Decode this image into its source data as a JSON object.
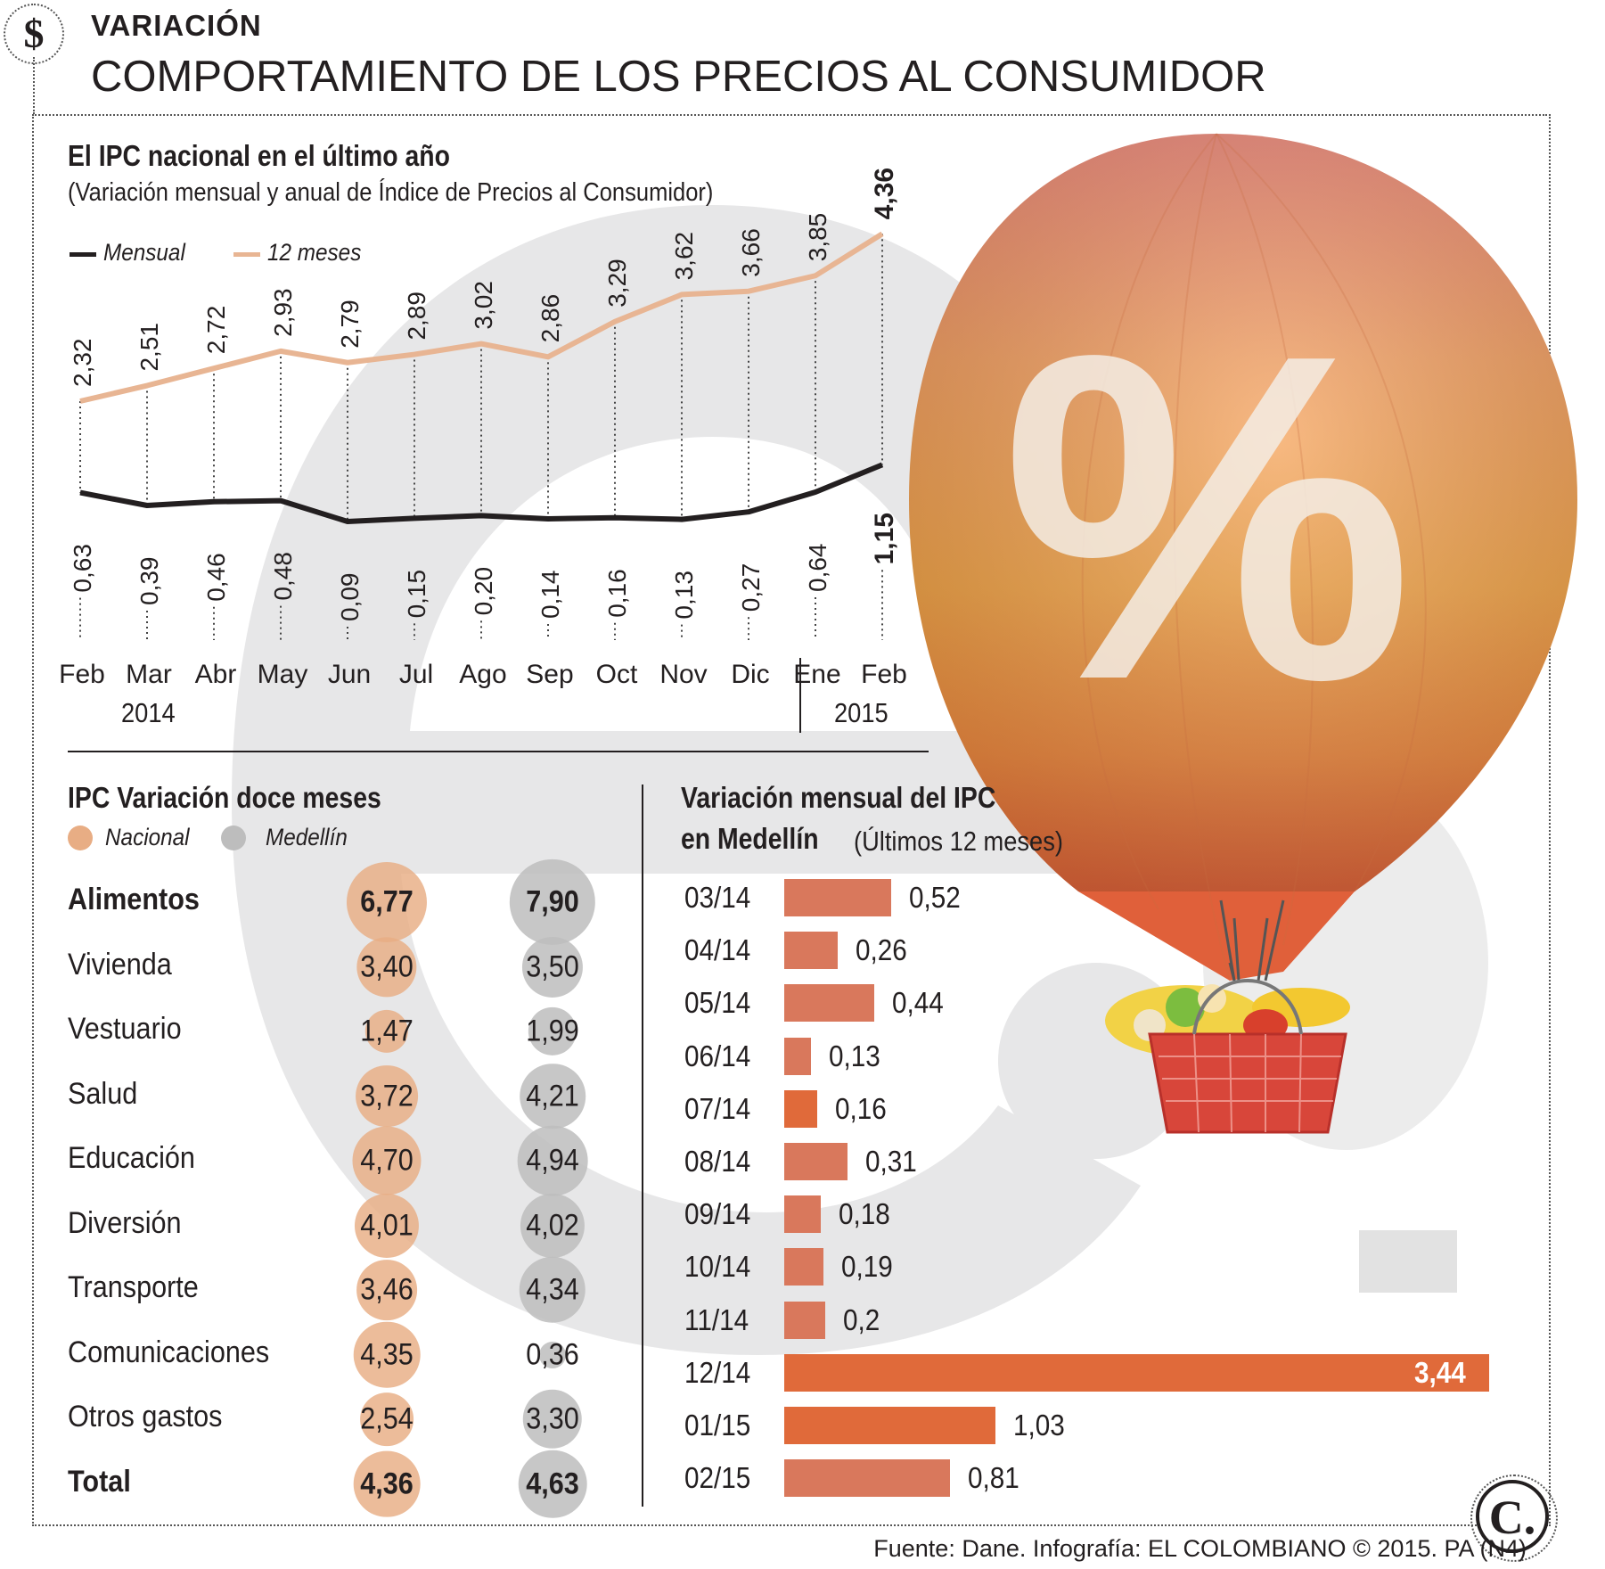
{
  "header": {
    "kicker": "VARIACIÓN",
    "title": "COMPORTAMIENTO DE LOS PRECIOS AL CONSUMIDOR",
    "dollar_icon": "$"
  },
  "line_chart": {
    "title": "El IPC nacional en el último año",
    "subtitle": "(Variación mensual y anual de Índice de Precios al Consumidor)",
    "legend": {
      "mensual": "Mensual",
      "anual": "12 meses"
    },
    "year_2014": "2014",
    "year_2015": "2015"
  },
  "bubbles": {
    "title": "IPC Variación doce meses",
    "legend": {
      "nacional": "Nacional",
      "medellin": "Medellín"
    }
  },
  "bars": {
    "title_line1": "Variación mensual del IPC",
    "title_line2": "en Medellín",
    "title_note": "(Últimos 12 meses)"
  },
  "footer": {
    "source": "Fuente: Dane. Infografía: EL COLOMBIANO © 2015. PA (N4)",
    "logo": "C."
  },
  "balloon": {
    "symbol": "%"
  },
  "colors": {
    "accent_light": "#e8ad84",
    "medellin_gray": "#bdbdbd",
    "bar": "#d9785c",
    "bar_highlight": "#e06a3a",
    "line_monthly": "#231f20",
    "line_annual": "#e8b593"
  },
  "chart_data": [
    {
      "type": "line",
      "title": "El IPC nacional en el último año",
      "categories": [
        "Feb",
        "Mar",
        "Abr",
        "May",
        "Jun",
        "Jul",
        "Ago",
        "Sep",
        "Oct",
        "Nov",
        "Dic",
        "Ene",
        "Feb"
      ],
      "series": [
        {
          "name": "12 meses",
          "labels": [
            "2,32",
            "2,51",
            "2,72",
            "2,93",
            "2,79",
            "2,89",
            "3,02",
            "2,86",
            "3,29",
            "3,62",
            "3,66",
            "3,85",
            "4,36"
          ],
          "values": [
            2.32,
            2.51,
            2.72,
            2.93,
            2.79,
            2.89,
            3.02,
            2.86,
            3.29,
            3.62,
            3.66,
            3.85,
            4.36
          ]
        },
        {
          "name": "Mensual",
          "labels": [
            "0,63",
            "0,39",
            "0,46",
            "0,48",
            "0,09",
            "0,15",
            "0,20",
            "0,14",
            "0,16",
            "0,13",
            "0,27",
            "0,64",
            "1,15"
          ],
          "values": [
            0.63,
            0.39,
            0.46,
            0.48,
            0.09,
            0.15,
            0.2,
            0.14,
            0.16,
            0.13,
            0.27,
            0.64,
            1.15
          ]
        }
      ]
    },
    {
      "type": "bubble",
      "title": "IPC Variación doce meses",
      "rows": [
        {
          "label": "Alimentos",
          "nacional": "6,77",
          "medellin": "7,90",
          "n": 6.77,
          "m": 7.9,
          "bold": true
        },
        {
          "label": "Vivienda",
          "nacional": "3,40",
          "medellin": "3,50",
          "n": 3.4,
          "m": 3.5
        },
        {
          "label": "Vestuario",
          "nacional": "1,47",
          "medellin": "1,99",
          "n": 1.47,
          "m": 1.99
        },
        {
          "label": "Salud",
          "nacional": "3,72",
          "medellin": "4,21",
          "n": 3.72,
          "m": 4.21
        },
        {
          "label": "Educación",
          "nacional": "4,70",
          "medellin": "4,94",
          "n": 4.7,
          "m": 4.94
        },
        {
          "label": "Diversión",
          "nacional": "4,01",
          "medellin": "4,02",
          "n": 4.01,
          "m": 4.02
        },
        {
          "label": "Transporte",
          "nacional": "3,46",
          "medellin": "4,34",
          "n": 3.46,
          "m": 4.34
        },
        {
          "label": "Comunicaciones",
          "nacional": "4,35",
          "medellin": "0,36",
          "n": 4.35,
          "m": 0.36
        },
        {
          "label": "Otros gastos",
          "nacional": "2,54",
          "medellin": "3,30",
          "n": 2.54,
          "m": 3.3
        },
        {
          "label": "Total",
          "nacional": "4,36",
          "medellin": "4,63",
          "n": 4.36,
          "m": 4.63,
          "bold": true
        }
      ]
    },
    {
      "type": "bar",
      "title": "Variación mensual del IPC en Medellín (Últimos 12 meses)",
      "categories": [
        "03/14",
        "04/14",
        "05/14",
        "06/14",
        "07/14",
        "08/14",
        "09/14",
        "10/14",
        "11/14",
        "12/14",
        "01/15",
        "02/15"
      ],
      "labels": [
        "0,52",
        "0,26",
        "0,44",
        "0,13",
        "0,16",
        "0,31",
        "0,18",
        "0,19",
        "0,2",
        "3,44",
        "1,03",
        "0,81"
      ],
      "values": [
        0.52,
        0.26,
        0.44,
        0.13,
        0.16,
        0.31,
        0.18,
        0.19,
        0.2,
        3.44,
        1.03,
        0.81
      ]
    }
  ]
}
